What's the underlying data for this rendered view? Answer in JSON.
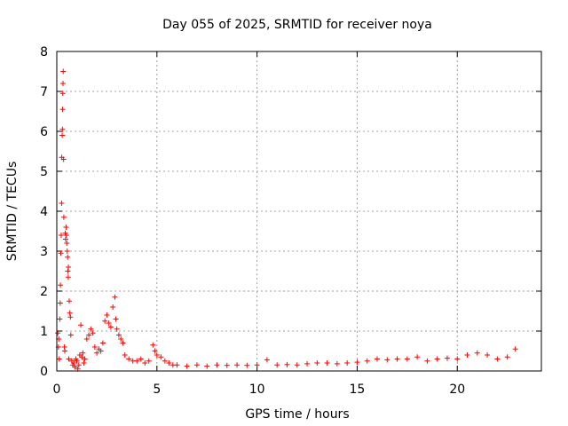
{
  "chart_data": {
    "type": "scatter",
    "title": "Day 055 of 2025, SRMTID for receiver noya",
    "xlabel": "GPS time / hours",
    "ylabel": "SRMTID / TECUs",
    "xlim": [
      0,
      24.2
    ],
    "ylim": [
      0,
      8
    ],
    "xticks": [
      0,
      5,
      10,
      15,
      20
    ],
    "yticks": [
      0,
      1,
      2,
      3,
      4,
      5,
      6,
      7,
      8
    ],
    "grid": true,
    "marker": "+",
    "color": "#ff0000",
    "series": [
      {
        "name": "SRMTID",
        "points": [
          [
            0.05,
            0.95
          ],
          [
            0.08,
            0.6
          ],
          [
            0.1,
            0.8
          ],
          [
            0.12,
            0.3
          ],
          [
            0.15,
            1.3
          ],
          [
            0.17,
            1.7
          ],
          [
            0.18,
            2.15
          ],
          [
            0.2,
            2.95
          ],
          [
            0.22,
            3.4
          ],
          [
            0.24,
            4.2
          ],
          [
            0.25,
            5.35
          ],
          [
            0.27,
            5.9
          ],
          [
            0.28,
            6.05
          ],
          [
            0.29,
            6.55
          ],
          [
            0.3,
            6.95
          ],
          [
            0.31,
            7.2
          ],
          [
            0.32,
            7.5
          ],
          [
            0.34,
            5.3
          ],
          [
            0.35,
            3.85
          ],
          [
            0.38,
            0.6
          ],
          [
            0.4,
            0.5
          ],
          [
            0.42,
            3.45
          ],
          [
            0.44,
            3.3
          ],
          [
            0.46,
            3.6
          ],
          [
            0.48,
            3.4
          ],
          [
            0.5,
            3.2
          ],
          [
            0.52,
            3.0
          ],
          [
            0.54,
            2.85
          ],
          [
            0.55,
            2.5
          ],
          [
            0.57,
            2.35
          ],
          [
            0.58,
            2.6
          ],
          [
            0.6,
            0.3
          ],
          [
            0.62,
            1.75
          ],
          [
            0.65,
            1.45
          ],
          [
            0.68,
            1.35
          ],
          [
            0.7,
            0.9
          ],
          [
            0.75,
            0.25
          ],
          [
            0.8,
            0.15
          ],
          [
            0.85,
            0.2
          ],
          [
            0.9,
            0.1
          ],
          [
            0.95,
            0.3
          ],
          [
            1.0,
            0.25
          ],
          [
            1.05,
            0.05
          ],
          [
            1.1,
            0.15
          ],
          [
            1.15,
            0.4
          ],
          [
            1.2,
            1.15
          ],
          [
            1.25,
            0.35
          ],
          [
            1.3,
            0.45
          ],
          [
            1.35,
            0.2
          ],
          [
            1.4,
            0.3
          ],
          [
            1.5,
            0.8
          ],
          [
            1.6,
            0.9
          ],
          [
            1.7,
            1.05
          ],
          [
            1.8,
            0.95
          ],
          [
            1.9,
            0.6
          ],
          [
            2.0,
            0.45
          ],
          [
            2.1,
            0.55
          ],
          [
            2.2,
            0.5
          ],
          [
            2.3,
            0.7
          ],
          [
            2.4,
            1.25
          ],
          [
            2.5,
            1.4
          ],
          [
            2.6,
            1.2
          ],
          [
            2.7,
            1.1
          ],
          [
            2.8,
            1.6
          ],
          [
            2.9,
            1.85
          ],
          [
            2.95,
            1.3
          ],
          [
            3.0,
            1.05
          ],
          [
            3.1,
            0.9
          ],
          [
            3.2,
            0.8
          ],
          [
            3.3,
            0.7
          ],
          [
            3.4,
            0.4
          ],
          [
            3.6,
            0.3
          ],
          [
            3.8,
            0.25
          ],
          [
            4.0,
            0.25
          ],
          [
            4.2,
            0.3
          ],
          [
            4.4,
            0.2
          ],
          [
            4.6,
            0.25
          ],
          [
            4.8,
            0.65
          ],
          [
            4.9,
            0.5
          ],
          [
            5.0,
            0.4
          ],
          [
            5.2,
            0.35
          ],
          [
            5.4,
            0.25
          ],
          [
            5.6,
            0.2
          ],
          [
            5.8,
            0.15
          ],
          [
            6.0,
            0.15
          ],
          [
            6.5,
            0.12
          ],
          [
            7.0,
            0.15
          ],
          [
            7.5,
            0.12
          ],
          [
            8.0,
            0.15
          ],
          [
            8.5,
            0.14
          ],
          [
            9.0,
            0.15
          ],
          [
            9.5,
            0.14
          ],
          [
            10.0,
            0.15
          ],
          [
            10.5,
            0.28
          ],
          [
            11.0,
            0.15
          ],
          [
            11.5,
            0.16
          ],
          [
            12.0,
            0.15
          ],
          [
            12.5,
            0.18
          ],
          [
            13.0,
            0.2
          ],
          [
            13.5,
            0.2
          ],
          [
            14.0,
            0.18
          ],
          [
            14.5,
            0.2
          ],
          [
            15.0,
            0.22
          ],
          [
            15.5,
            0.25
          ],
          [
            16.0,
            0.3
          ],
          [
            16.5,
            0.28
          ],
          [
            17.0,
            0.3
          ],
          [
            17.5,
            0.3
          ],
          [
            18.0,
            0.35
          ],
          [
            18.5,
            0.25
          ],
          [
            19.0,
            0.3
          ],
          [
            19.5,
            0.32
          ],
          [
            20.0,
            0.3
          ],
          [
            20.5,
            0.4
          ],
          [
            21.0,
            0.45
          ],
          [
            21.5,
            0.4
          ],
          [
            22.0,
            0.3
          ],
          [
            22.5,
            0.35
          ],
          [
            22.9,
            0.55
          ]
        ]
      }
    ]
  }
}
